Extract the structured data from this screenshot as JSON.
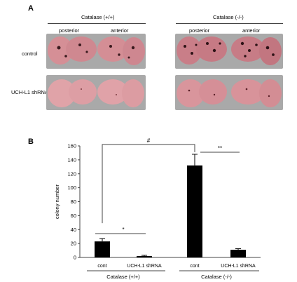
{
  "panel_a": {
    "letter": "A",
    "groups": [
      "Catalase (+/+)",
      "Catalase (-/-)"
    ],
    "views": [
      "posterior",
      "anterior",
      "posterior",
      "anterior"
    ],
    "rows": [
      "control",
      "UCH-L1 shRNA"
    ],
    "lung_color": "#d9929a",
    "background_color": "#a9a9a9"
  },
  "panel_b": {
    "letter": "B",
    "significance": [
      "#",
      "**",
      "*"
    ]
  },
  "chart_data": {
    "type": "bar",
    "categories": [
      "cont",
      "UCH-L1 shRNA",
      "cont",
      "UCH-L1 shRNA"
    ],
    "groups": [
      {
        "label": "Catalase (+/+)",
        "categories": [
          "cont",
          "UCH-L1 shRNA"
        ]
      },
      {
        "label": "Catalase (-/-)",
        "categories": [
          "cont",
          "UCH-L1 shRNA"
        ]
      }
    ],
    "values": [
      23,
      2,
      132,
      11
    ],
    "errors": [
      4,
      1,
      16,
      1.5
    ],
    "ylabel": "colony number",
    "ylim": [
      0,
      160
    ],
    "yticks": [
      0,
      20,
      40,
      60,
      80,
      100,
      120,
      140,
      160
    ],
    "bar_color": "#000000",
    "grid": false
  }
}
